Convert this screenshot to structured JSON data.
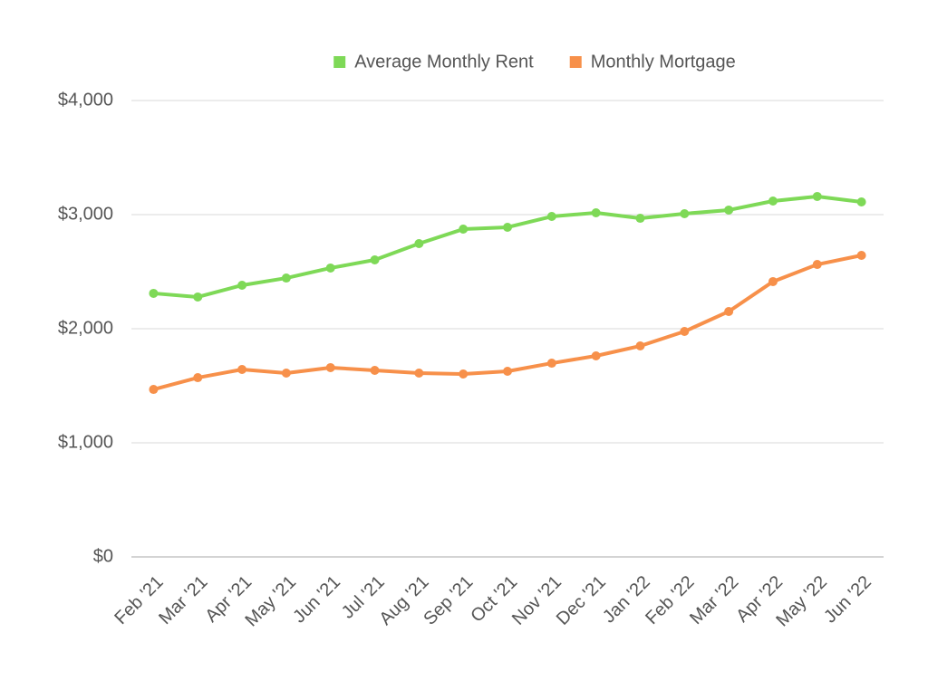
{
  "chart_data": {
    "type": "line",
    "categories": [
      "Feb '21",
      "Mar '21",
      "Apr '21",
      "May '21",
      "Jun '21",
      "Jul '21",
      "Aug '21",
      "Sep '21",
      "Oct '21",
      "Nov '21",
      "Dec '21",
      "Jan '22",
      "Feb '22",
      "Mar '22",
      "Apr '22",
      "May '22",
      "Jun '22"
    ],
    "series": [
      {
        "name": "Average Monthly Rent",
        "color": "#7ed957",
        "values": [
          2310,
          2278,
          2381,
          2444,
          2532,
          2603,
          2746,
          2873,
          2889,
          2984,
          3016,
          2968,
          3008,
          3040,
          3119,
          3159,
          3111
        ]
      },
      {
        "name": "Monthly Mortgage",
        "color": "#f7904a",
        "values": [
          1468,
          1571,
          1643,
          1611,
          1659,
          1635,
          1611,
          1603,
          1627,
          1698,
          1762,
          1849,
          1976,
          2151,
          2413,
          2563,
          2643
        ]
      }
    ],
    "ylim": [
      0,
      4000
    ],
    "yticks": [
      {
        "value": 0,
        "label": "$0"
      },
      {
        "value": 1000,
        "label": "$1,000"
      },
      {
        "value": 2000,
        "label": "$2,000"
      },
      {
        "value": 3000,
        "label": "$3,000"
      },
      {
        "value": 4000,
        "label": "$4,000"
      }
    ],
    "grid": true,
    "legend": "top"
  }
}
